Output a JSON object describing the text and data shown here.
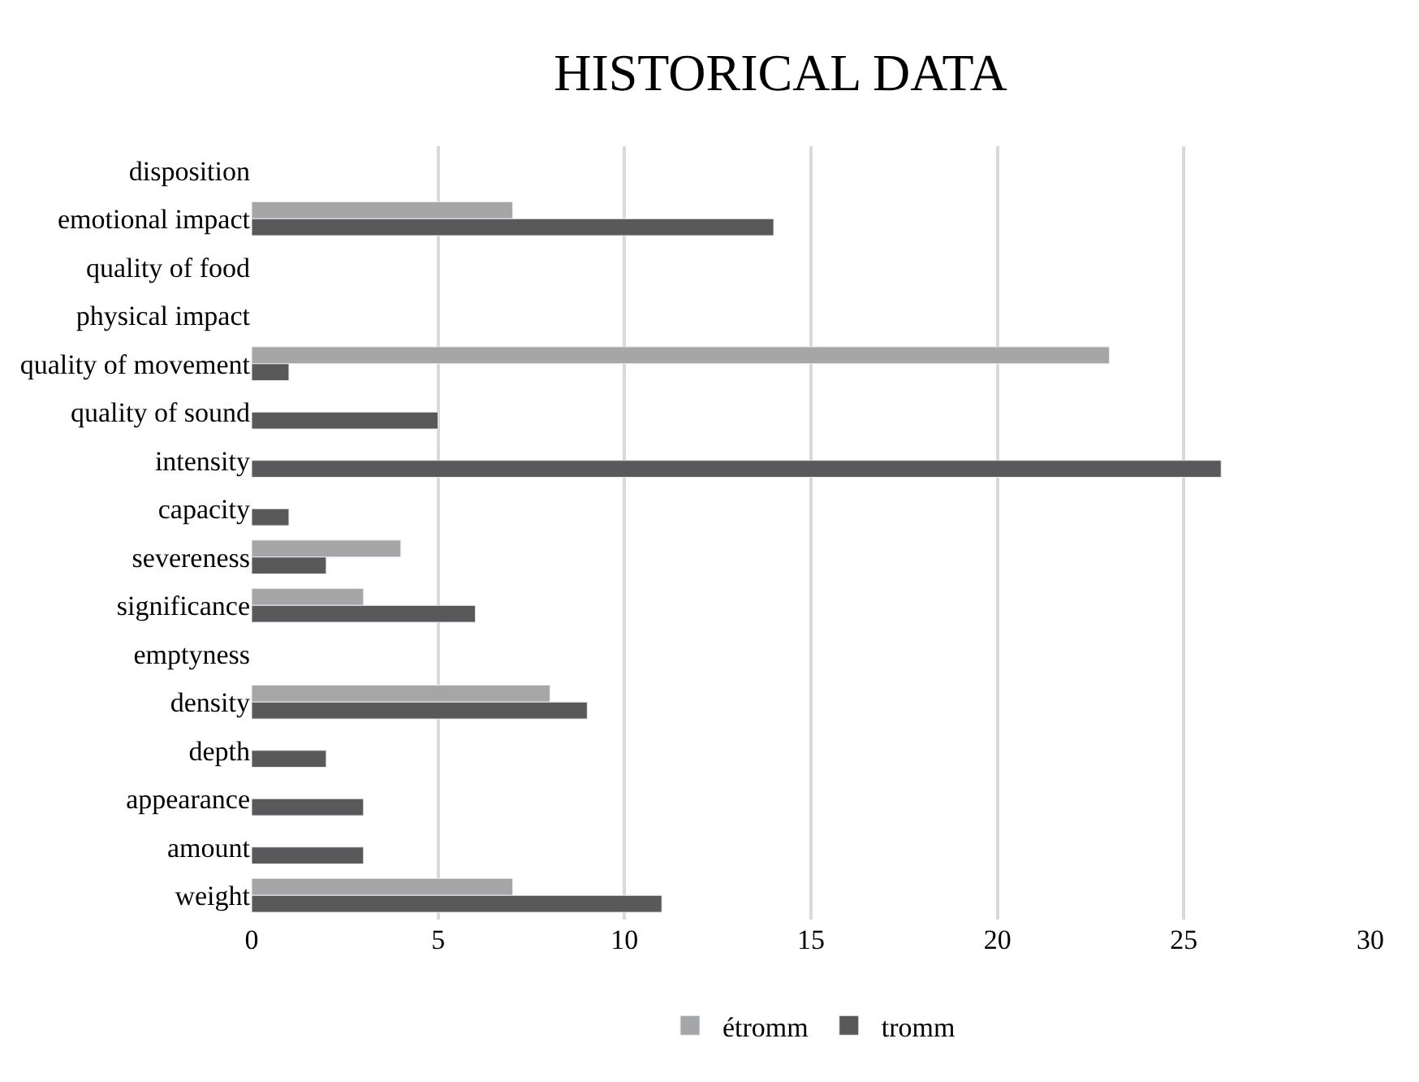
{
  "chart_data": {
    "type": "bar",
    "orientation": "horizontal",
    "title": "HISTORICAL DATA",
    "categories": [
      "disposition",
      "emotional impact",
      "quality of food",
      "physical impact",
      "quality of movement",
      "quality of sound",
      "intensity",
      "capacity",
      "severeness",
      "significance",
      "emptyness",
      "density",
      "depth",
      "appearance",
      "amount",
      "weight"
    ],
    "series": [
      {
        "name": "étromm",
        "color": "#a6a6a6",
        "values": [
          null,
          7,
          null,
          null,
          23,
          null,
          null,
          null,
          4,
          3,
          null,
          8,
          null,
          null,
          null,
          7
        ]
      },
      {
        "name": "tromm",
        "color": "#595959",
        "values": [
          null,
          14,
          null,
          null,
          1,
          5,
          26,
          1,
          2,
          6,
          null,
          9,
          2,
          3,
          3,
          11
        ]
      }
    ],
    "xlim": [
      0,
      30
    ],
    "xticks": [
      0,
      5,
      10,
      15,
      20,
      25,
      30
    ],
    "grid": "x",
    "legend": "bottom"
  }
}
